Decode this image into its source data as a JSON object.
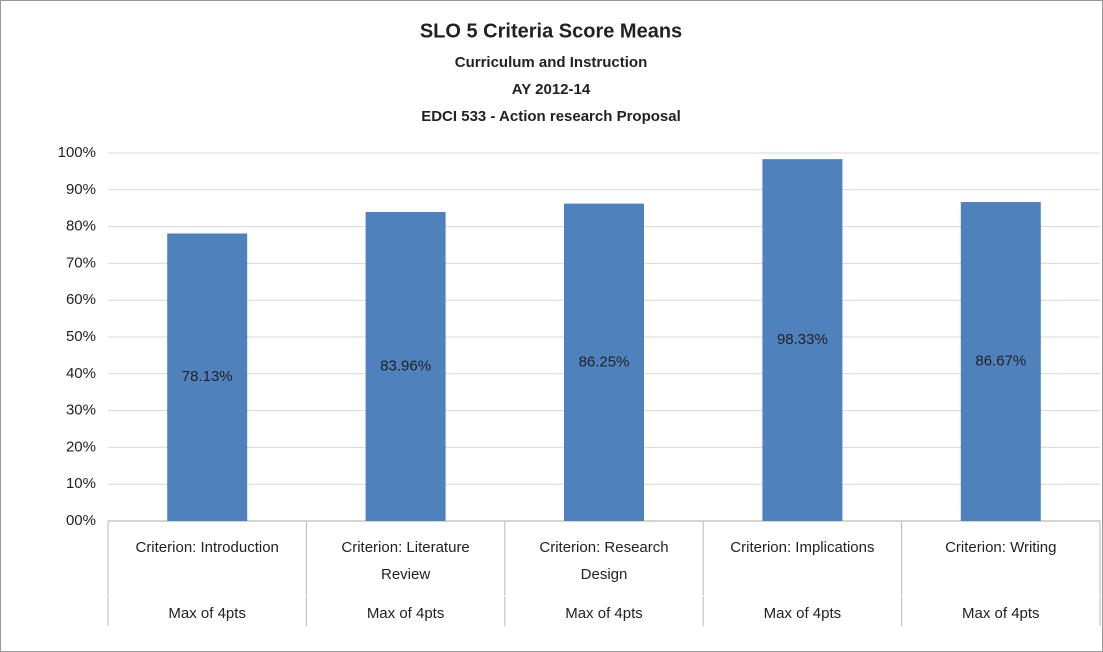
{
  "chart_data": {
    "type": "bar",
    "title": "SLO 5 Criteria Score Means",
    "subtitles": [
      "Curriculum and Instruction",
      "AY 2012-14",
      "EDCI 533 - Action research Proposal"
    ],
    "categories": [
      "Criterion: Introduction",
      "Criterion: Literature Review",
      "Criterion: Research Design",
      "Criterion: Implications",
      "Criterion: Writing"
    ],
    "sublabels": [
      "Max of 4pts",
      "Max of 4pts",
      "Max of 4pts",
      "Max of 4pts",
      "Max of 4pts"
    ],
    "values": [
      78.13,
      83.96,
      86.25,
      98.33,
      86.67
    ],
    "value_labels": [
      "78.13%",
      "83.96%",
      "86.25%",
      "98.33%",
      "86.67%"
    ],
    "color": "#4f81bd",
    "ylim": [
      0,
      100
    ],
    "yticks": [
      {
        "value": 0,
        "label": "00%"
      },
      {
        "value": 10,
        "label": "10%"
      },
      {
        "value": 20,
        "label": "20%"
      },
      {
        "value": 30,
        "label": "30%"
      },
      {
        "value": 40,
        "label": "40%"
      },
      {
        "value": 50,
        "label": "50%"
      },
      {
        "value": 60,
        "label": "60%"
      },
      {
        "value": 70,
        "label": "70%"
      },
      {
        "value": 80,
        "label": "80%"
      },
      {
        "value": 90,
        "label": "90%"
      },
      {
        "value": 100,
        "label": "100%"
      }
    ],
    "grid": true
  }
}
